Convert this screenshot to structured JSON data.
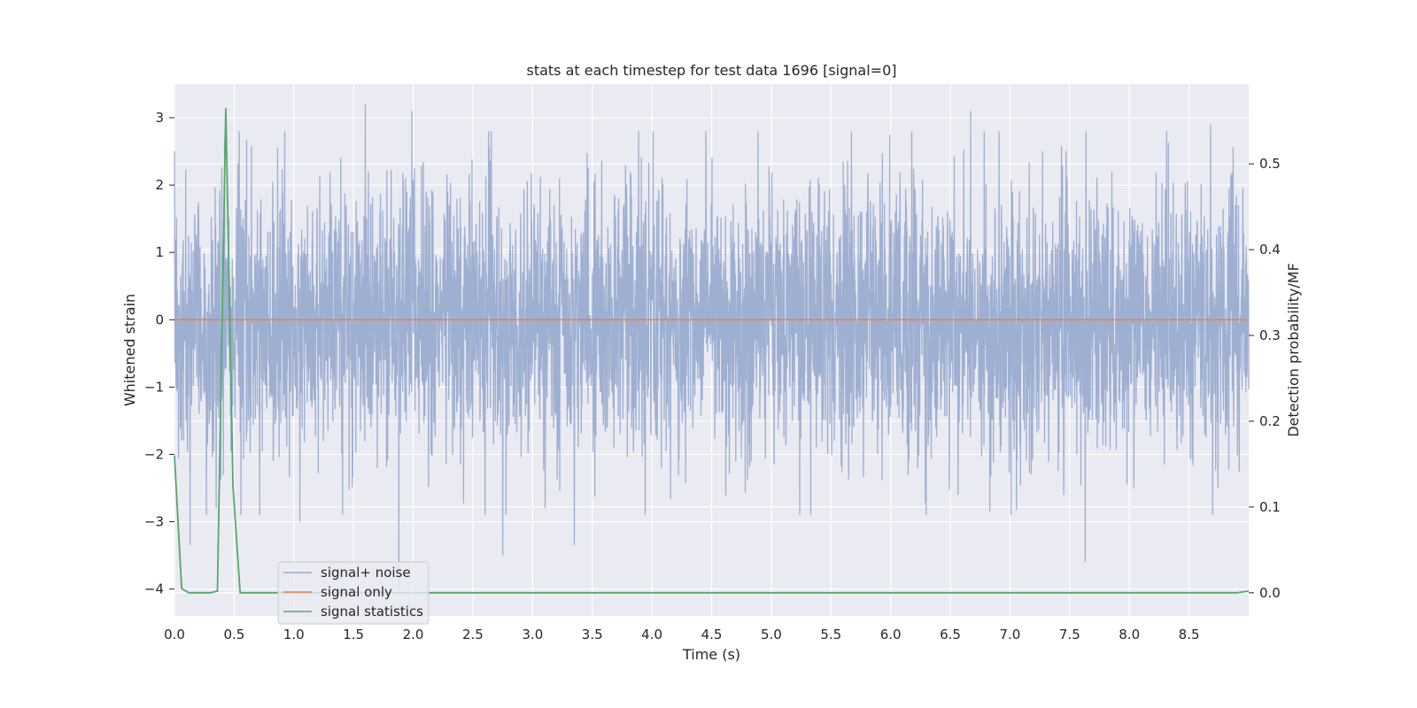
{
  "chart_data": {
    "type": "line",
    "title": "stats at each timestep for test data 1696 [signal=0]",
    "xlabel": "Time (s)",
    "ylabel": "Whitened strain",
    "y2label": "Detection probability/MF",
    "xlim": [
      0.0,
      9.0
    ],
    "ylim": [
      -4.4,
      3.5
    ],
    "y2lim": [
      -0.027,
      0.593
    ],
    "xticks": [
      "0.0",
      "0.5",
      "1.0",
      "1.5",
      "2.0",
      "2.5",
      "3.0",
      "3.5",
      "4.0",
      "4.5",
      "5.0",
      "5.5",
      "6.0",
      "6.5",
      "7.0",
      "7.5",
      "8.0",
      "8.5"
    ],
    "yticks": [
      "−4",
      "−3",
      "−2",
      "−1",
      "0",
      "1",
      "2",
      "3"
    ],
    "y2ticks": [
      "0.0",
      "0.1",
      "0.2",
      "0.3",
      "0.4",
      "0.5"
    ],
    "grid": true,
    "legend_position": "lower-left",
    "series": [
      {
        "name": "signal+ noise",
        "axis": "left",
        "color": "#9aaccf",
        "description_noise_amplitude": 1.0,
        "peaks": [
          {
            "x": 0.13,
            "y": -3.35
          },
          {
            "x": 0.42,
            "y": 2.7
          },
          {
            "x": 1.05,
            "y": -3.0
          },
          {
            "x": 1.6,
            "y": 3.2
          },
          {
            "x": 1.88,
            "y": -4.0
          },
          {
            "x": 1.99,
            "y": 3.1
          },
          {
            "x": 2.75,
            "y": -3.5
          },
          {
            "x": 3.35,
            "y": -3.35
          },
          {
            "x": 7.63,
            "y": -3.6
          },
          {
            "x": 6.67,
            "y": 3.1
          },
          {
            "x": 8.68,
            "y": 2.9
          }
        ]
      },
      {
        "name": "signal only",
        "axis": "left",
        "color": "#dd8452",
        "x": [
          0.0,
          9.0
        ],
        "y": [
          0.0,
          0.0
        ]
      },
      {
        "name": "signal statistics",
        "axis": "right",
        "color": "#55a868",
        "x": [
          0.0,
          0.06,
          0.12,
          0.18,
          0.24,
          0.3,
          0.36,
          0.43,
          0.49,
          0.55,
          0.61,
          1.0,
          2.0,
          3.0,
          4.0,
          5.0,
          6.0,
          7.0,
          8.0,
          8.6,
          8.9,
          9.0
        ],
        "y": [
          0.16,
          0.005,
          0.0,
          0.0,
          0.0,
          0.0,
          0.002,
          0.565,
          0.125,
          0.0,
          0.0,
          0.0,
          0.0,
          0.0,
          0.0,
          0.0,
          0.0,
          0.0,
          0.0,
          0.0,
          0.0,
          0.002
        ]
      }
    ]
  }
}
